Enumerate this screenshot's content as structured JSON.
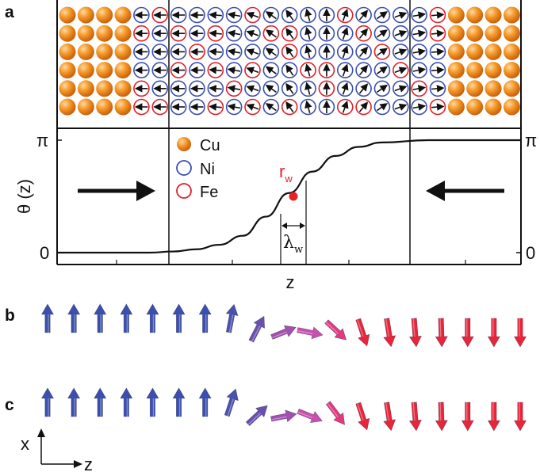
{
  "panels": {
    "a": {
      "letter": "a",
      "atom_lattice": {
        "rows": 6,
        "columns": 25,
        "cu_left_columns": 4,
        "cu_right_columns": 4,
        "spin_angles_deg_by_column": [
          0,
          0,
          0,
          0,
          0,
          0,
          0,
          0,
          5,
          10,
          20,
          35,
          55,
          75,
          90,
          110,
          130,
          145,
          160,
          170,
          175,
          180,
          180,
          180,
          180
        ],
        "fe_pattern_note": "mixed"
      },
      "legend": [
        {
          "label": "Cu",
          "symbol": "filled-sphere",
          "color": "#f08a1c"
        },
        {
          "label": "Ni",
          "symbol": "open-circle",
          "color": "#3a4fb0"
        },
        {
          "label": "Fe",
          "symbol": "open-circle",
          "color": "#e0202a"
        }
      ],
      "y_axis_label": "θ (z)",
      "y_tick_top": "π",
      "y_tick_bottom": "0",
      "x_axis_label": "z",
      "point_label": "r",
      "point_label_sub": "w",
      "width_label": "λ",
      "width_label_sub": "w",
      "point_color": "#e8202a"
    },
    "b": {
      "letter": "b"
    },
    "c": {
      "letter": "c"
    }
  },
  "axes_indicator": {
    "vertical": "x",
    "horizontal": "z"
  },
  "chart_data": {
    "type": "line",
    "x": [
      0,
      0.1,
      0.2,
      0.25,
      0.3,
      0.35,
      0.4,
      0.45,
      0.5,
      0.55,
      0.6,
      0.65,
      0.7,
      0.8,
      0.9,
      1.0
    ],
    "y": [
      0,
      0,
      0,
      0.01,
      0.03,
      0.07,
      0.15,
      0.32,
      0.53,
      0.72,
      0.86,
      0.94,
      0.98,
      1.0,
      1.0,
      1.0
    ],
    "ylim": [
      0,
      1
    ],
    "xlabel": "z",
    "ylabel": "θ (z)",
    "title": ""
  },
  "arrow_rows": {
    "b": {
      "count": 19,
      "colors": [
        "#3a4fb0",
        "#3a4fb0",
        "#3a4fb0",
        "#3a4fb0",
        "#3a4fb0",
        "#3a4fb0",
        "#3a4fb0",
        "#4a52b0",
        "#6a4fb0",
        "#a34fb0",
        "#c84fb0",
        "#e23a80",
        "#e8253a",
        "#e8253a",
        "#e8253a",
        "#e8253a",
        "#e8253a",
        "#e8253a",
        "#e8253a"
      ],
      "tilt_deg": [
        0,
        0,
        0,
        0,
        0,
        0,
        0,
        12,
        30,
        70,
        100,
        130,
        160,
        170,
        175,
        178,
        180,
        180,
        180
      ]
    },
    "c": {
      "count": 19,
      "colors": [
        "#3a4fb0",
        "#3a4fb0",
        "#3a4fb0",
        "#3a4fb0",
        "#3a4fb0",
        "#3a4fb0",
        "#3a4fb0",
        "#4a52b0",
        "#6a4fb0",
        "#a34fb0",
        "#c84fb0",
        "#e23a80",
        "#e8253a",
        "#e8253a",
        "#e8253a",
        "#e8253a",
        "#e8253a",
        "#e8253a",
        "#e8253a"
      ],
      "tilt_deg": [
        0,
        0,
        0,
        0,
        0,
        0,
        0,
        20,
        50,
        80,
        110,
        140,
        160,
        170,
        175,
        178,
        180,
        180,
        180
      ]
    }
  }
}
